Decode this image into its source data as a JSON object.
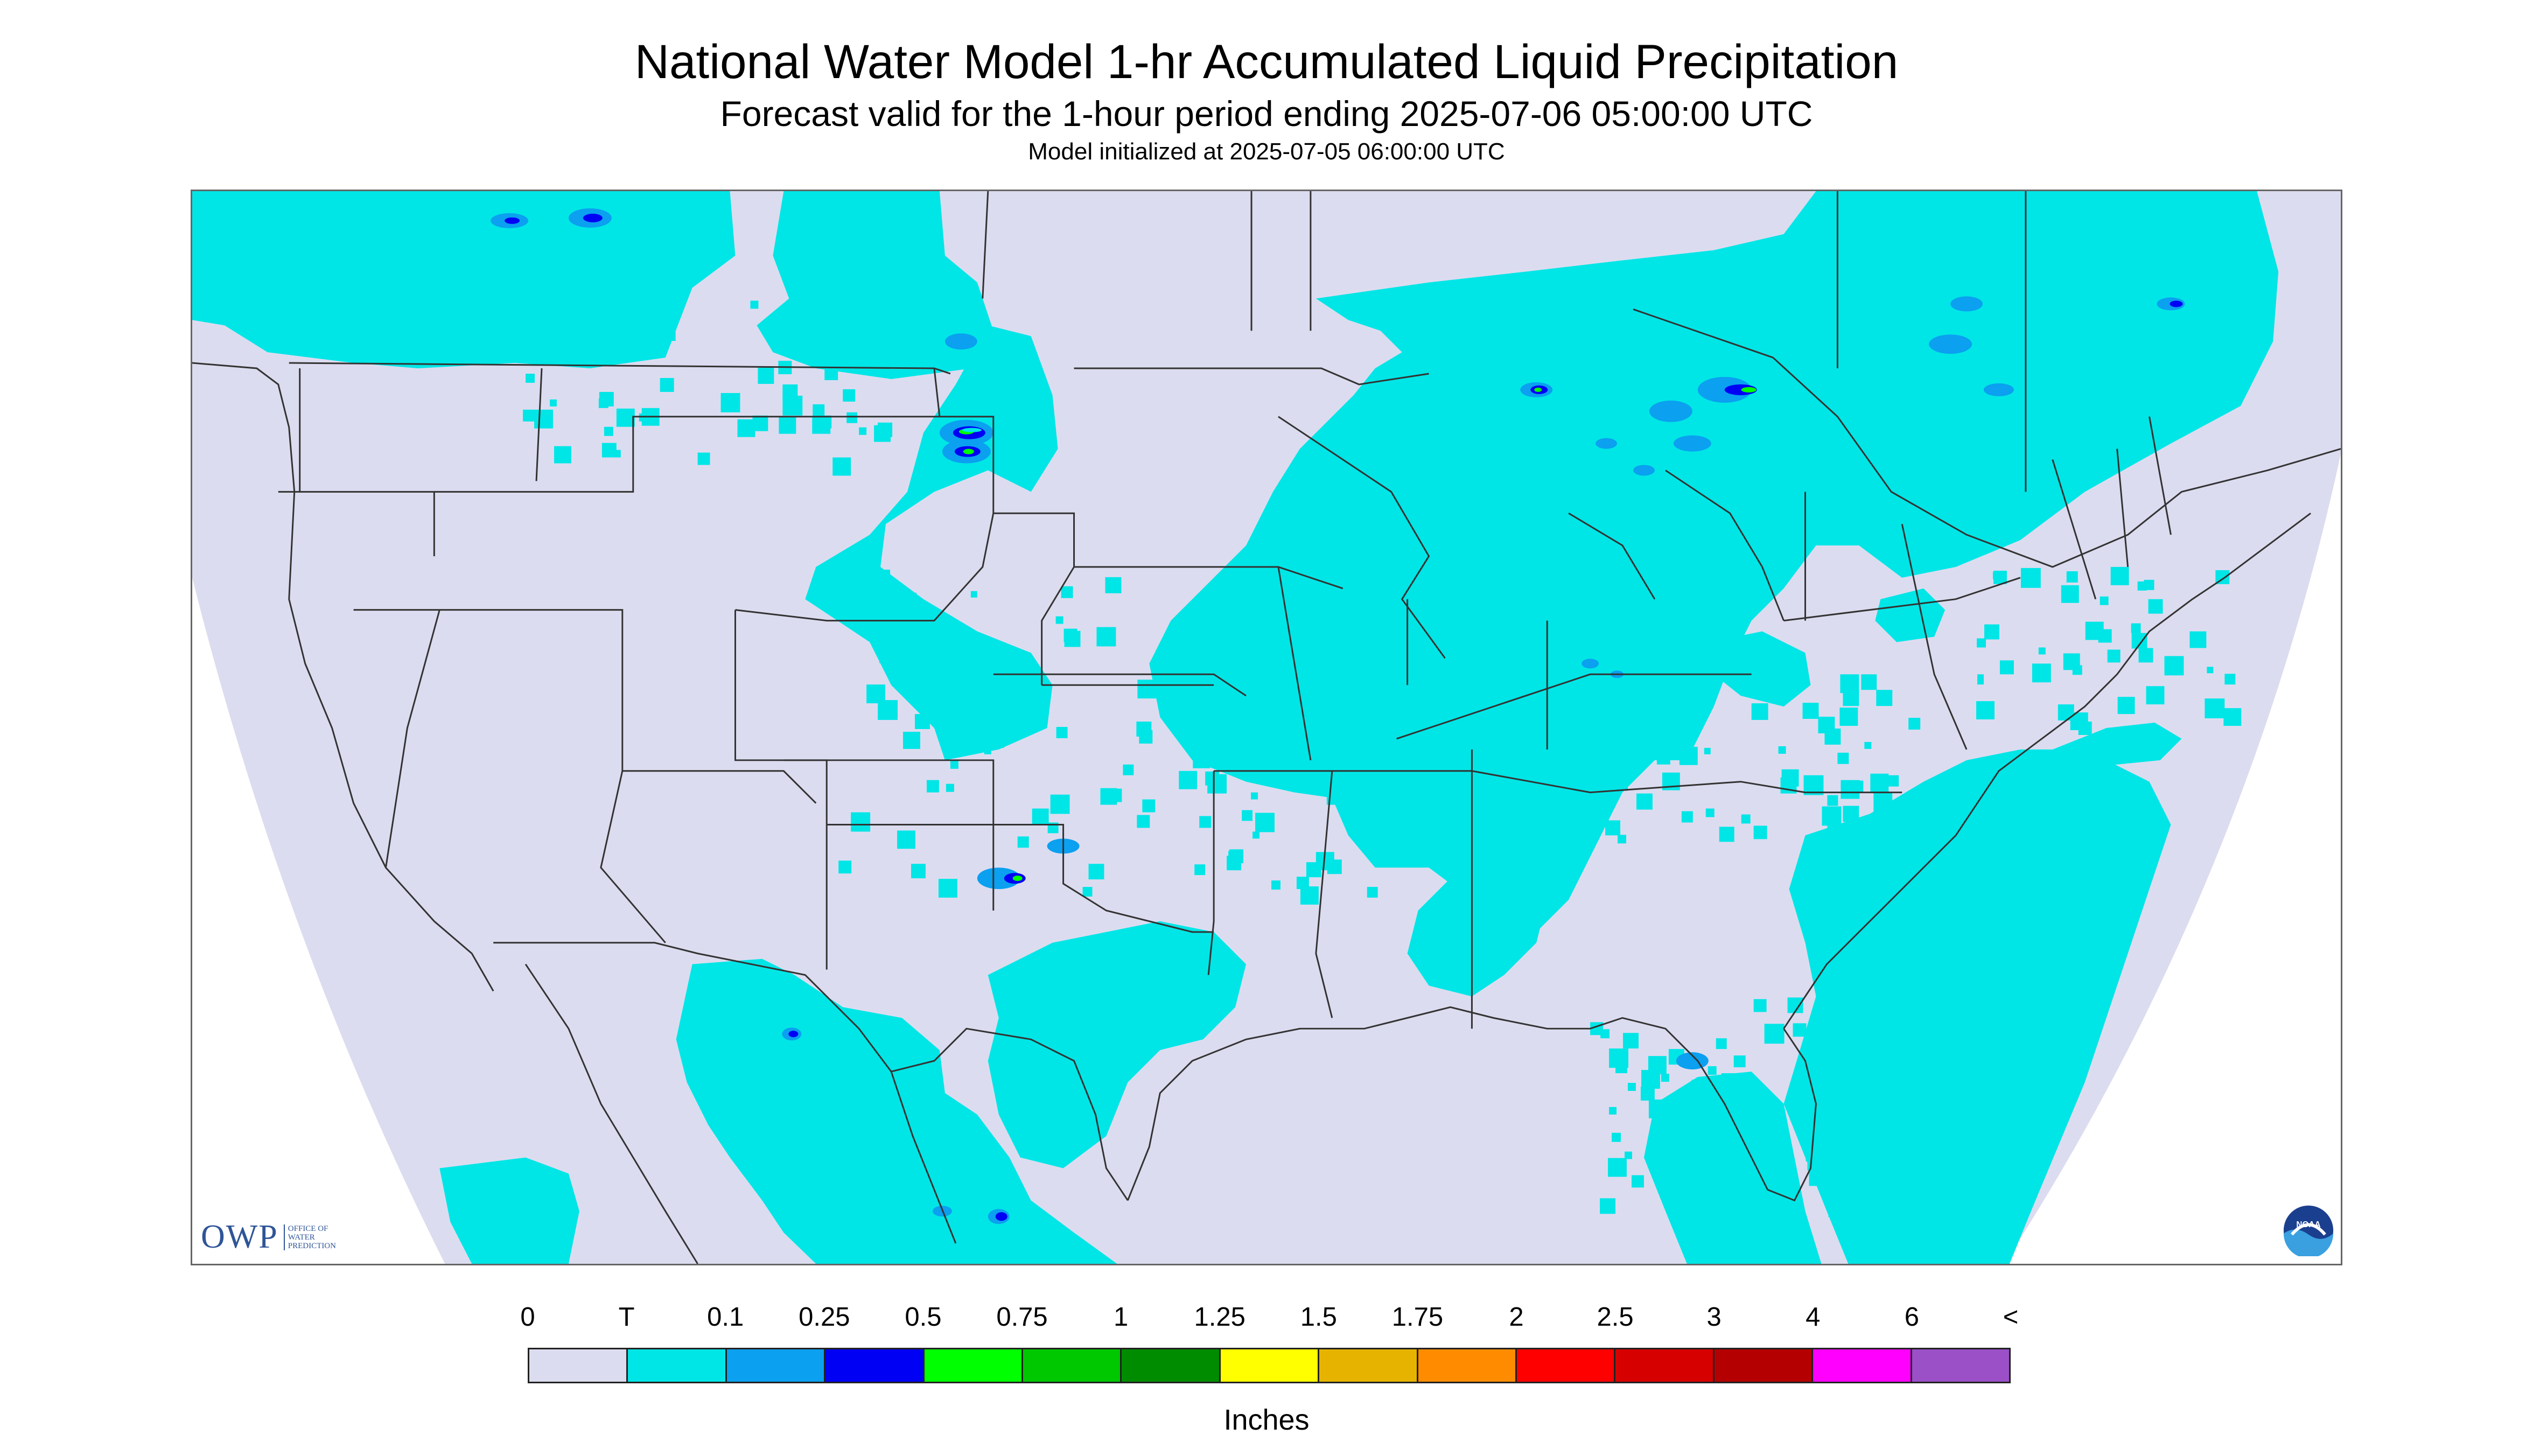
{
  "title": "National Water Model 1-hr Accumulated Liquid Precipitation",
  "subtitle": "Forecast valid for the 1-hour period ending 2025-07-06 05:00:00 UTC",
  "init_text": "Model initialized at 2025-07-05 06:00:00 UTC",
  "logos": {
    "owp_text": "OWP",
    "owp_sub": [
      "OFFICE OF",
      "WATER",
      "PREDICTION"
    ],
    "noaa_text": "NOAA"
  },
  "legend": {
    "labels": [
      "0",
      "T",
      "0.1",
      "0.25",
      "0.5",
      "0.75",
      "1",
      "1.25",
      "1.5",
      "1.75",
      "2",
      "2.5",
      "3",
      "4",
      "6",
      "<"
    ],
    "colors": [
      "#dcdcf0",
      "#00e6e6",
      "#0ba0f0",
      "#0000f5",
      "#00ff00",
      "#00c800",
      "#008c00",
      "#ffff00",
      "#e6b400",
      "#ff8c00",
      "#ff0000",
      "#d70000",
      "#b40000",
      "#ff00ff",
      "#9b50c8"
    ],
    "units": "Inches"
  },
  "map": {
    "no_precip_color": "#dcdcf0",
    "trace_color": "#00e6e6",
    "light_color": "#0ba0f0",
    "moderate_color": "#0000f5",
    "heavy_color": "#00ff00",
    "boundary_color": "#333333"
  }
}
